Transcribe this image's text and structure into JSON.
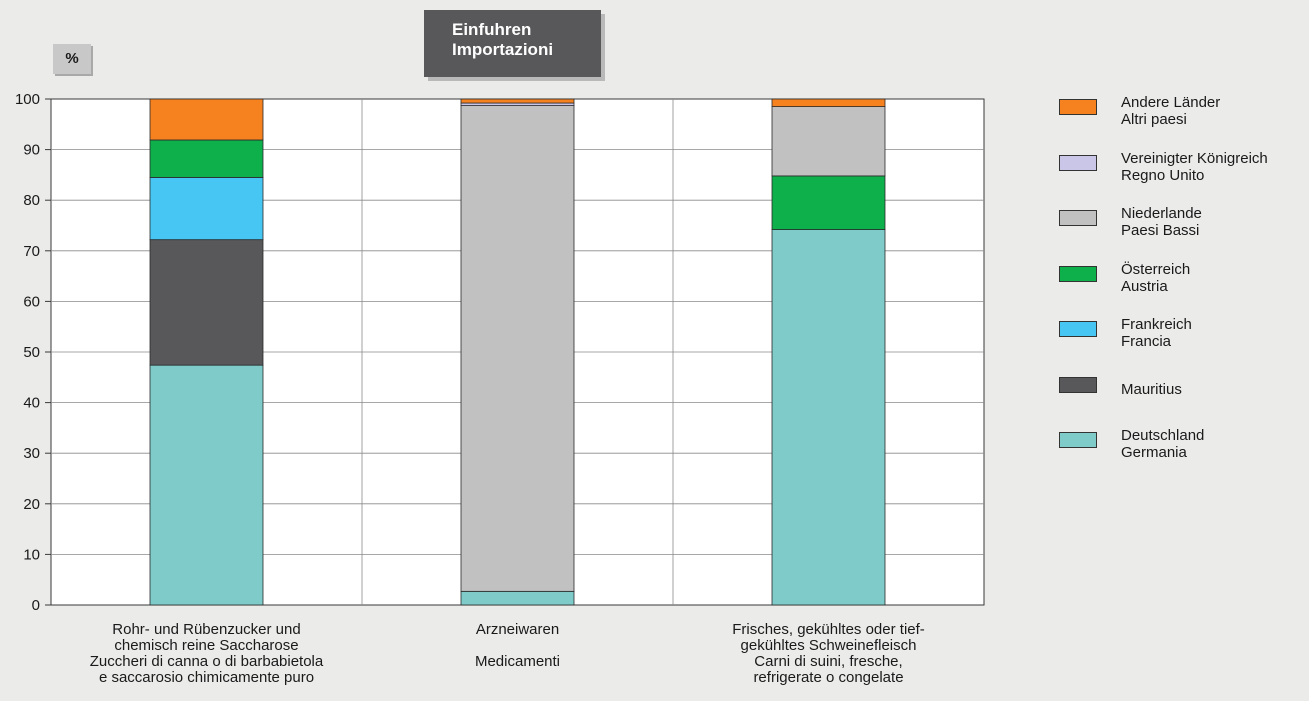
{
  "title": {
    "line1": "Einfuhren",
    "line2": "Importazioni"
  },
  "unit": "%",
  "chart_data": {
    "type": "bar",
    "stacked": true,
    "ylim": [
      0,
      100
    ],
    "yticks": [
      0,
      10,
      20,
      30,
      40,
      50,
      60,
      70,
      80,
      90,
      100
    ],
    "grid": true,
    "legend_position": "right",
    "categories": [
      [
        "Rohr- und Rübenzucker und",
        "chemisch reine Saccharose",
        "Zuccheri di canna o di barbabietola",
        "e saccarosio chimicamente puro"
      ],
      [
        "Arzneiwaren",
        "",
        "Medicamenti",
        ""
      ],
      [
        "Frisches, gekühltes oder tief-",
        "gekühltes Schweinefleisch",
        "Carni di suini, fresche,",
        "refrigerate o congelate"
      ]
    ],
    "series": [
      {
        "name": [
          "Deutschland",
          "Germania"
        ],
        "color": "#7ecbc9",
        "values": [
          47.4,
          2.7,
          74.2
        ]
      },
      {
        "name": [
          "Mauritius",
          ""
        ],
        "color": "#58585a",
        "values": [
          24.8,
          0,
          0
        ]
      },
      {
        "name": [
          "Frankreich",
          "Francia"
        ],
        "color": "#47c6f4",
        "values": [
          12.3,
          0,
          0
        ]
      },
      {
        "name": [
          "Österreich",
          "Austria"
        ],
        "color": "#0db04b",
        "values": [
          7.4,
          0,
          10.6
        ]
      },
      {
        "name": [
          "Niederlande",
          "Paesi Bassi"
        ],
        "color": "#c1c1c1",
        "values": [
          0,
          96.0,
          13.7
        ]
      },
      {
        "name": [
          "Vereinigter Königreich",
          "Regno Unito"
        ],
        "color": "#c9c6e8",
        "values": [
          0,
          0.5,
          0
        ]
      },
      {
        "name": [
          "Andere Länder",
          "Altri paesi"
        ],
        "color": "#f5821f",
        "values": [
          8.1,
          0.8,
          1.5
        ]
      }
    ]
  }
}
